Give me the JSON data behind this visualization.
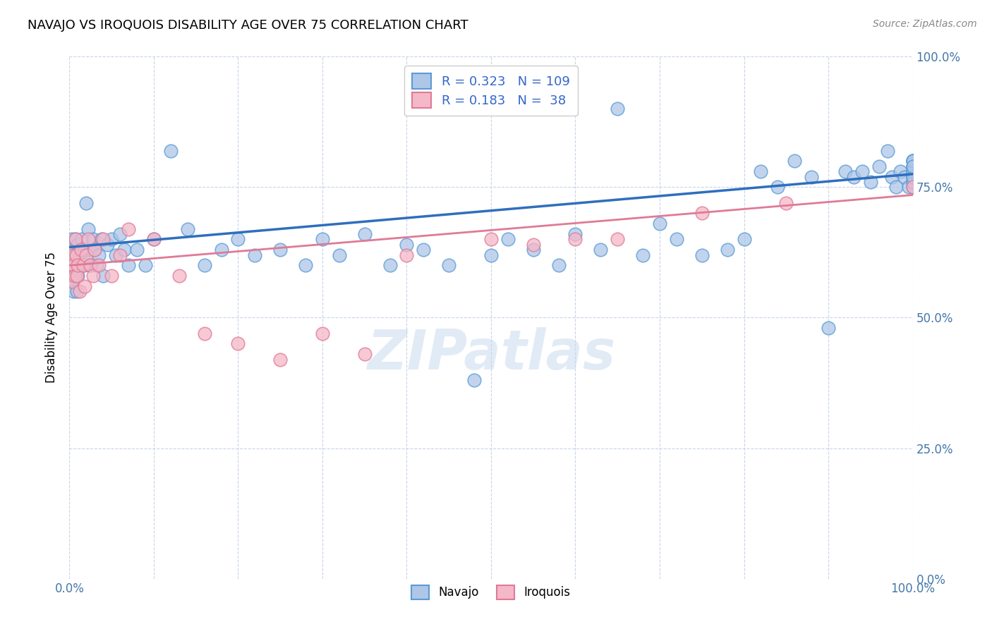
{
  "title": "NAVAJO VS IROQUOIS DISABILITY AGE OVER 75 CORRELATION CHART",
  "source": "Source: ZipAtlas.com",
  "ylabel": "Disability Age Over 75",
  "navajo_R": 0.323,
  "navajo_N": 109,
  "iroquois_R": 0.183,
  "iroquois_N": 38,
  "navajo_color": "#aec6e8",
  "navajo_edge_color": "#5b9bd5",
  "navajo_line_color": "#2e6fbd",
  "iroquois_color": "#f4b8c8",
  "iroquois_edge_color": "#e07a96",
  "iroquois_line_color": "#e07a96",
  "legend_text_color": "#3366cc",
  "watermark": "ZIPatlas",
  "background_color": "#ffffff",
  "grid_color": "#c8d4e8",
  "axis_label_color": "#4477aa",
  "ytick_labels": [
    "0.0%",
    "25.0%",
    "50.0%",
    "75.0%",
    "100.0%"
  ],
  "ytick_values": [
    0.0,
    0.25,
    0.5,
    0.75,
    1.0
  ],
  "xtick_values": [
    0.0,
    0.1,
    0.2,
    0.3,
    0.4,
    0.5,
    0.6,
    0.7,
    0.8,
    0.9,
    1.0
  ],
  "navajo_trend_start_y": 0.635,
  "navajo_trend_end_y": 0.775,
  "iroquois_trend_start_y": 0.6,
  "iroquois_trend_end_y": 0.735,
  "navajo_x": [
    0.002,
    0.003,
    0.003,
    0.004,
    0.004,
    0.005,
    0.005,
    0.005,
    0.006,
    0.006,
    0.007,
    0.007,
    0.008,
    0.008,
    0.009,
    0.009,
    0.01,
    0.01,
    0.01,
    0.012,
    0.013,
    0.014,
    0.015,
    0.016,
    0.017,
    0.018,
    0.02,
    0.022,
    0.024,
    0.026,
    0.028,
    0.03,
    0.032,
    0.035,
    0.038,
    0.04,
    0.045,
    0.05,
    0.055,
    0.06,
    0.065,
    0.07,
    0.08,
    0.09,
    0.1,
    0.12,
    0.14,
    0.16,
    0.18,
    0.2,
    0.22,
    0.25,
    0.28,
    0.3,
    0.32,
    0.35,
    0.38,
    0.4,
    0.42,
    0.45,
    0.48,
    0.5,
    0.52,
    0.55,
    0.58,
    0.6,
    0.63,
    0.65,
    0.68,
    0.7,
    0.72,
    0.75,
    0.78,
    0.8,
    0.82,
    0.84,
    0.86,
    0.88,
    0.9,
    0.92,
    0.93,
    0.94,
    0.95,
    0.96,
    0.97,
    0.975,
    0.98,
    0.985,
    0.99,
    0.995,
    1.0,
    1.0,
    1.0,
    1.0,
    1.0,
    1.0,
    1.0,
    1.0,
    1.0,
    1.0,
    1.0,
    1.0,
    1.0,
    1.0,
    1.0,
    1.0,
    1.0,
    1.0,
    1.0
  ],
  "navajo_y": [
    0.57,
    0.6,
    0.65,
    0.58,
    0.62,
    0.63,
    0.6,
    0.55,
    0.62,
    0.6,
    0.65,
    0.6,
    0.58,
    0.62,
    0.6,
    0.55,
    0.64,
    0.6,
    0.58,
    0.63,
    0.62,
    0.6,
    0.65,
    0.62,
    0.6,
    0.63,
    0.72,
    0.67,
    0.6,
    0.63,
    0.65,
    0.63,
    0.6,
    0.62,
    0.65,
    0.58,
    0.64,
    0.65,
    0.62,
    0.66,
    0.63,
    0.6,
    0.63,
    0.6,
    0.65,
    0.82,
    0.67,
    0.6,
    0.63,
    0.65,
    0.62,
    0.63,
    0.6,
    0.65,
    0.62,
    0.66,
    0.6,
    0.64,
    0.63,
    0.6,
    0.38,
    0.62,
    0.65,
    0.63,
    0.6,
    0.66,
    0.63,
    0.9,
    0.62,
    0.68,
    0.65,
    0.62,
    0.63,
    0.65,
    0.78,
    0.75,
    0.8,
    0.77,
    0.48,
    0.78,
    0.77,
    0.78,
    0.76,
    0.79,
    0.82,
    0.77,
    0.75,
    0.78,
    0.77,
    0.75,
    0.8,
    0.77,
    0.79,
    0.75,
    0.78,
    0.8,
    0.77,
    0.78,
    0.79,
    0.76,
    0.78,
    0.77,
    0.8,
    0.79,
    0.76,
    0.78,
    0.8,
    0.77,
    0.79
  ],
  "iroquois_x": [
    0.002,
    0.003,
    0.004,
    0.005,
    0.006,
    0.007,
    0.008,
    0.009,
    0.01,
    0.012,
    0.014,
    0.016,
    0.018,
    0.02,
    0.022,
    0.025,
    0.028,
    0.03,
    0.035,
    0.04,
    0.05,
    0.06,
    0.07,
    0.1,
    0.13,
    0.16,
    0.2,
    0.25,
    0.3,
    0.35,
    0.4,
    0.5,
    0.55,
    0.6,
    0.65,
    0.75,
    0.85,
    1.0
  ],
  "iroquois_y": [
    0.6,
    0.57,
    0.62,
    0.6,
    0.58,
    0.65,
    0.62,
    0.58,
    0.6,
    0.55,
    0.63,
    0.6,
    0.56,
    0.62,
    0.65,
    0.6,
    0.58,
    0.63,
    0.6,
    0.65,
    0.58,
    0.62,
    0.67,
    0.65,
    0.58,
    0.47,
    0.45,
    0.42,
    0.47,
    0.43,
    0.62,
    0.65,
    0.64,
    0.65,
    0.65,
    0.7,
    0.72,
    0.75
  ]
}
